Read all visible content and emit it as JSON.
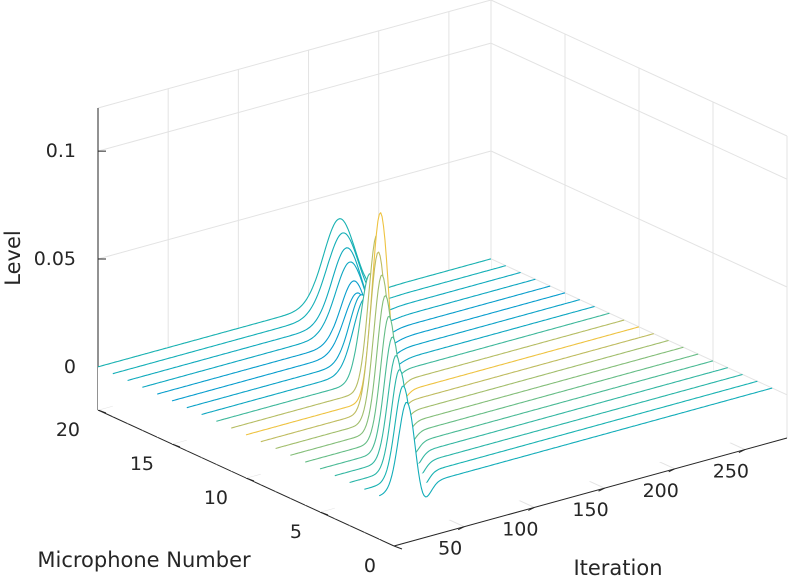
{
  "chart_data": {
    "type": "waterfall",
    "title": "",
    "xlabel": "Iteration",
    "ylabel": "Microphone Number",
    "zlabel": "Level",
    "xlim": [
      0,
      280
    ],
    "ylim": [
      0,
      20
    ],
    "zlim": [
      -0.02,
      0.12
    ],
    "x_ticks": [
      "50",
      "100",
      "150",
      "200",
      "250"
    ],
    "y_ticks": [
      "0",
      "5",
      "10",
      "15",
      "20"
    ],
    "z_ticks": [
      "0",
      "0.05",
      "0.1"
    ],
    "x_tick_values": [
      50,
      100,
      150,
      200,
      250
    ],
    "y_tick_values": [
      0,
      5,
      10,
      15,
      20
    ],
    "z_tick_values": [
      0,
      0.05,
      0.1
    ],
    "grid": true,
    "colormap": "parula",
    "microphones": [
      1,
      2,
      3,
      4,
      5,
      6,
      7,
      8,
      9,
      10,
      11,
      12,
      13,
      14,
      15,
      16,
      17,
      18,
      19,
      20
    ],
    "peak_iteration": [
      20,
      28,
      36,
      44,
      52,
      60,
      68,
      76,
      84,
      96,
      104,
      110,
      118,
      126,
      134,
      142,
      150,
      158,
      166,
      174
    ],
    "peak_level": [
      0.042,
      0.045,
      0.048,
      0.05,
      0.054,
      0.059,
      0.064,
      0.069,
      0.075,
      0.088,
      0.073,
      0.052,
      0.038,
      0.035,
      0.032,
      0.033,
      0.038,
      0.04,
      0.043,
      0.045
    ],
    "peak_width": [
      6,
      6,
      6,
      6,
      6,
      6,
      6,
      6,
      6,
      6,
      6,
      7,
      9,
      9,
      10,
      10,
      11,
      11,
      12,
      12
    ],
    "undershoot_level": -0.012,
    "undershoot_offset": 10
  }
}
